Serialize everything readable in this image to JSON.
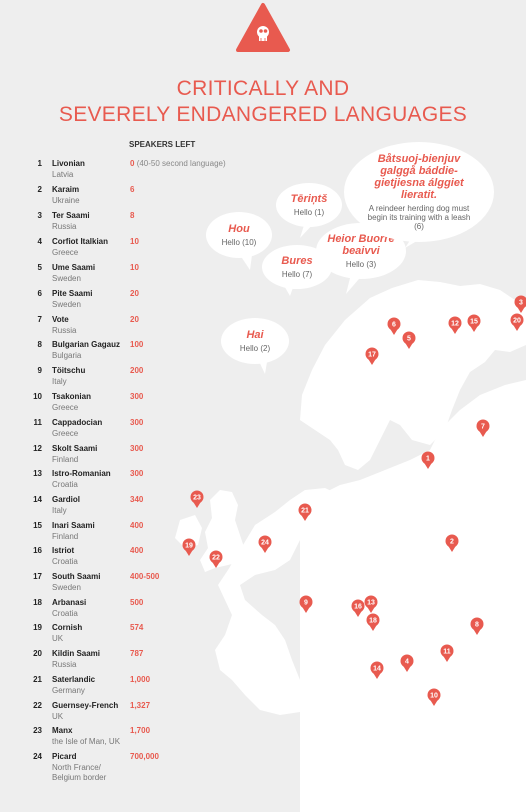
{
  "header": {
    "icon": "skull-icon",
    "title_line1": "CRITICALLY AND",
    "title_line2": "SEVERELY ENDANGERED LANGUAGES",
    "speakers_header": "SPEAKERS LEFT"
  },
  "colors": {
    "accent": "#e85a4f",
    "land": "#ffffff",
    "background": "#eeeeee"
  },
  "languages": [
    {
      "rank": "1",
      "name": "Livonian",
      "country": "Latvia",
      "speakers": "0",
      "note": "(40-50 second language)"
    },
    {
      "rank": "2",
      "name": "Karaim",
      "country": "Ukraine",
      "speakers": "6",
      "note": ""
    },
    {
      "rank": "3",
      "name": "Ter Saami",
      "country": "Russia",
      "speakers": "8",
      "note": ""
    },
    {
      "rank": "4",
      "name": "Corfiot Italkian",
      "country": "Greece",
      "speakers": "10",
      "note": ""
    },
    {
      "rank": "5",
      "name": "Ume Saami",
      "country": "Sweden",
      "speakers": "10",
      "note": ""
    },
    {
      "rank": "6",
      "name": "Pite Saami",
      "country": "Sweden",
      "speakers": "20",
      "note": ""
    },
    {
      "rank": "7",
      "name": "Vote",
      "country": "Russia",
      "speakers": "20",
      "note": ""
    },
    {
      "rank": "8",
      "name": "Bulgarian Gagauz",
      "country": "Bulgaria",
      "speakers": "100",
      "note": ""
    },
    {
      "rank": "9",
      "name": "Töitschu",
      "country": "Italy",
      "speakers": "200",
      "note": ""
    },
    {
      "rank": "10",
      "name": "Tsakonian",
      "country": "Greece",
      "speakers": "300",
      "note": ""
    },
    {
      "rank": "11",
      "name": "Cappadocian",
      "country": "Greece",
      "speakers": "300",
      "note": ""
    },
    {
      "rank": "12",
      "name": "Skolt Saami",
      "country": "Finland",
      "speakers": "300",
      "note": ""
    },
    {
      "rank": "13",
      "name": "Istro-Romanian",
      "country": "Croatia",
      "speakers": "300",
      "note": ""
    },
    {
      "rank": "14",
      "name": "Gardiol",
      "country": "Italy",
      "speakers": "340",
      "note": ""
    },
    {
      "rank": "15",
      "name": "Inari Saami",
      "country": "Finland",
      "speakers": "400",
      "note": ""
    },
    {
      "rank": "16",
      "name": "Istriot",
      "country": "Croatia",
      "speakers": "400",
      "note": ""
    },
    {
      "rank": "17",
      "name": "South Saami",
      "country": "Sweden",
      "speakers": "400-500",
      "note": ""
    },
    {
      "rank": "18",
      "name": "Arbanasi",
      "country": "Croatia",
      "speakers": "500",
      "note": ""
    },
    {
      "rank": "19",
      "name": "Cornish",
      "country": "UK",
      "speakers": "574",
      "note": ""
    },
    {
      "rank": "20",
      "name": "Kildin Saami",
      "country": "Russia",
      "speakers": "787",
      "note": ""
    },
    {
      "rank": "21",
      "name": "Saterlandic",
      "country": "Germany",
      "speakers": "1,000",
      "note": ""
    },
    {
      "rank": "22",
      "name": "Guernsey-French",
      "country": "UK",
      "speakers": "1,327",
      "note": ""
    },
    {
      "rank": "23",
      "name": "Manx",
      "country": "the Isle of Man, UK",
      "speakers": "1,700",
      "note": ""
    },
    {
      "rank": "24",
      "name": "Picard",
      "country": "North France/",
      "country2": "Belgium border",
      "speakers": "700,000",
      "note": ""
    }
  ],
  "bubbles": [
    {
      "word": "Hou",
      "translation": "Hello (10)"
    },
    {
      "word": "Tēriņtš",
      "translation": "Hello (1)"
    },
    {
      "word": "Bures",
      "translation": "Hello (7)"
    },
    {
      "word": "Heior Buorre beaivvi",
      "translation": "Hello (3)"
    },
    {
      "word": "Båtsuoj-bienjuv galggå báddie-gietjiesna álggiet lieratit.",
      "translation": "A reindeer herding dog must begin its training with a leash (6)"
    },
    {
      "word": "Hai",
      "translation": "Hello (2)"
    }
  ],
  "pins": [
    "3",
    "20",
    "6",
    "12",
    "15",
    "5",
    "17",
    "7",
    "1",
    "23",
    "21",
    "2",
    "19",
    "24",
    "22",
    "9",
    "16",
    "13",
    "18",
    "8",
    "4",
    "11",
    "14",
    "10"
  ]
}
